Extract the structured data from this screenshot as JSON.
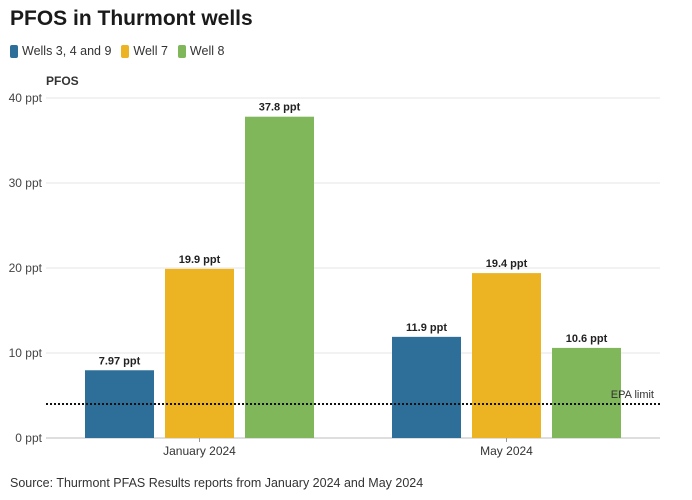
{
  "title": "PFOS in Thurmont wells",
  "source": "Source: Thurmont PFAS Results reports from January 2024 and May 2024",
  "colors": {
    "series0": "#2e6f99",
    "series1": "#ecb423",
    "series2": "#80b75a"
  },
  "chart_data": {
    "type": "bar",
    "title": "PFOS in Thurmont wells",
    "ylabel": "PFOS",
    "xlabel": "",
    "categories": [
      "January 2024",
      "May 2024"
    ],
    "series": [
      {
        "name": "Wells 3, 4 and 9",
        "values": [
          7.97,
          11.9
        ],
        "labels": [
          "7.97 ppt",
          "11.9 ppt"
        ]
      },
      {
        "name": "Well 7",
        "values": [
          19.9,
          19.4
        ],
        "labels": [
          "19.9 ppt",
          "19.4 ppt"
        ]
      },
      {
        "name": "Well 8",
        "values": [
          37.8,
          10.6
        ],
        "labels": [
          "37.8 ppt",
          "10.6 ppt"
        ]
      }
    ],
    "ylim": [
      0,
      40
    ],
    "yticks": [
      0,
      10,
      20,
      30,
      40
    ],
    "ytick_labels": [
      "0 ppt",
      "10 ppt",
      "20 ppt",
      "30 ppt",
      "40 ppt"
    ],
    "reference_line": {
      "value": 4,
      "label": "EPA limit",
      "style": "dotted"
    },
    "grid": true,
    "legend_position": "top-left"
  }
}
